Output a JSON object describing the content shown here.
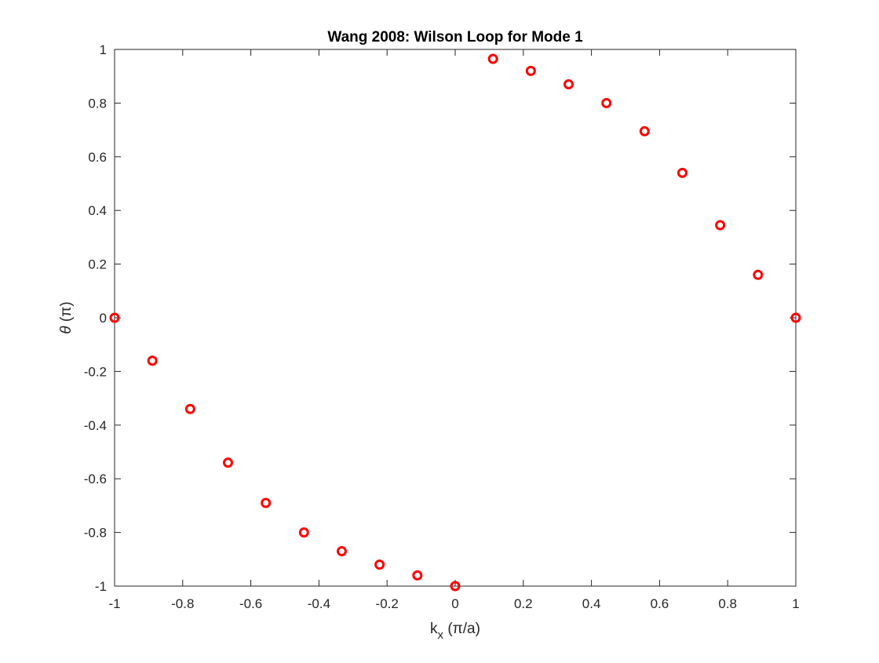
{
  "chart_data": {
    "type": "scatter",
    "title": "Wang 2008: Wilson Loop for Mode 1",
    "xlabel": {
      "main": "k",
      "sub": "x",
      "rest": " (π/a)"
    },
    "ylabel": {
      "sym": "θ",
      "rest": " (π)"
    },
    "xlim": [
      -1,
      1
    ],
    "ylim": [
      -1,
      1
    ],
    "x_ticks": [
      -1,
      -0.8,
      -0.6,
      -0.4,
      -0.2,
      0,
      0.2,
      0.4,
      0.6,
      0.8,
      1
    ],
    "x_tick_labels": [
      "-1",
      "-0.8",
      "-0.6",
      "-0.4",
      "-0.2",
      "0",
      "0.2",
      "0.4",
      "0.6",
      "0.8",
      "1"
    ],
    "y_ticks": [
      -1,
      -0.8,
      -0.6,
      -0.4,
      -0.2,
      0,
      0.2,
      0.4,
      0.6,
      0.8,
      1
    ],
    "y_tick_labels": [
      "-1",
      "-0.8",
      "-0.6",
      "-0.4",
      "-0.2",
      "0",
      "0.2",
      "0.4",
      "0.6",
      "0.8",
      "1"
    ],
    "grid": false,
    "marker": "circle-open",
    "marker_color": "#ff0000",
    "axis_color": "#262626",
    "series": [
      {
        "x": [
          -1,
          -0.889,
          -0.778,
          -0.667,
          -0.556,
          -0.444,
          -0.333,
          -0.222,
          -0.111,
          0,
          0.111,
          0.222,
          0.333,
          0.444,
          0.556,
          0.667,
          0.778,
          0.889,
          1
        ],
        "y": [
          0,
          -0.16,
          -0.34,
          -0.54,
          -0.69,
          -0.8,
          -0.87,
          -0.92,
          -0.96,
          -1.0,
          0.965,
          0.92,
          0.87,
          0.8,
          0.695,
          0.54,
          0.345,
          0.16,
          0
        ]
      }
    ]
  }
}
